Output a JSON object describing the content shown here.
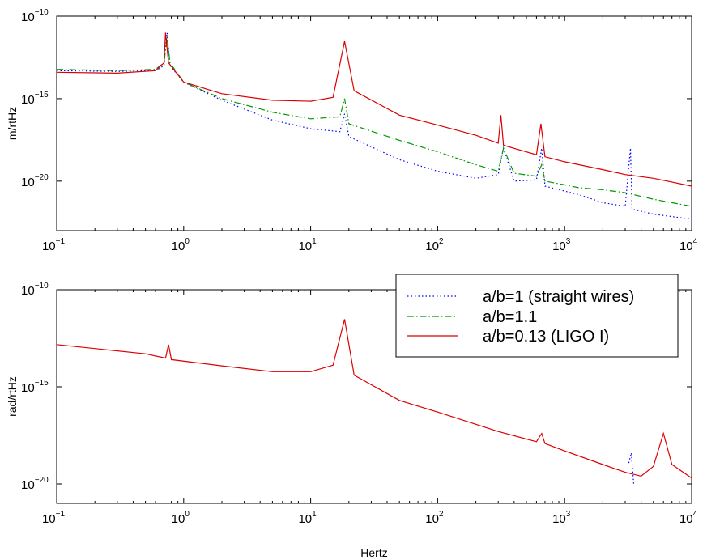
{
  "chart_data": [
    {
      "type": "line",
      "xscale": "log",
      "yscale": "log",
      "xlim": [
        0.1,
        10000
      ],
      "ylim": [
        1e-23,
        1e-10
      ],
      "xlabel": "",
      "ylabel": "m/rtHz",
      "x_ticks": [
        {
          "base": "10",
          "exp": "−1",
          "value": 0.1
        },
        {
          "base": "10",
          "exp": "0",
          "value": 1
        },
        {
          "base": "10",
          "exp": "1",
          "value": 10
        },
        {
          "base": "10",
          "exp": "2",
          "value": 100
        },
        {
          "base": "10",
          "exp": "3",
          "value": 1000
        },
        {
          "base": "10",
          "exp": "4",
          "value": 10000
        }
      ],
      "y_ticks": [
        {
          "base": "10",
          "exp": "−10",
          "value": 1e-10
        },
        {
          "base": "10",
          "exp": "−15",
          "value": 1e-15
        },
        {
          "base": "10",
          "exp": "−20",
          "value": 1e-20
        }
      ],
      "series": [
        {
          "name": "a/b=1 (straight wires)",
          "color": "#0000ff",
          "dash": "dotted",
          "x": [
            0.1,
            0.3,
            0.6,
            0.7,
            0.74,
            0.78,
            1,
            2,
            5,
            10,
            17,
            18.5,
            20,
            50,
            100,
            200,
            300,
            330,
            400,
            600,
            660,
            700,
            1000,
            1300,
            2000,
            3000,
            3300,
            3400,
            5000,
            10000
          ],
          "y": [
            5e-14,
            4.5e-14,
            5e-14,
            1e-13,
            1e-11,
            1e-13,
            1e-14,
            8e-16,
            5e-17,
            1.5e-17,
            1e-17,
            1.2e-16,
            5e-18,
            2e-19,
            4e-20,
            1.5e-20,
            2.5e-20,
            1e-18,
            1e-20,
            1.2e-20,
            1e-18,
            5e-21,
            2.5e-21,
            1.5e-21,
            5e-22,
            3e-22,
            1e-18,
            2e-22,
            1e-22,
            5e-23
          ]
        },
        {
          "name": "a/b=1.1",
          "color": "#009900",
          "dash": "dashdot",
          "x": [
            0.1,
            0.3,
            0.6,
            0.7,
            0.74,
            0.78,
            1,
            2,
            5,
            10,
            17,
            18.5,
            20,
            50,
            100,
            200,
            300,
            330,
            400,
            600,
            660,
            700,
            1000,
            1300,
            2000,
            3000,
            5000,
            10000
          ],
          "y": [
            6e-14,
            5e-14,
            6e-14,
            1.5e-13,
            5e-12,
            1.5e-13,
            1e-14,
            1e-15,
            1.5e-16,
            6e-17,
            8e-17,
            1e-15,
            3e-17,
            3e-18,
            6e-19,
            1e-19,
            4e-20,
            1e-18,
            3e-20,
            2e-20,
            1e-19,
            1e-20,
            6e-21,
            4e-21,
            3e-21,
            2e-21,
            8e-22,
            3e-22
          ]
        },
        {
          "name": "a/b=0.13 (LIGO I)",
          "color": "#dd0000",
          "dash": "solid",
          "x": [
            0.1,
            0.3,
            0.6,
            0.7,
            0.72,
            0.76,
            1,
            2,
            5,
            10,
            15,
            18.5,
            22,
            50,
            100,
            200,
            300,
            315,
            330,
            600,
            650,
            700,
            1000,
            2000,
            3000,
            5000,
            10000
          ],
          "y": [
            4e-14,
            3.5e-14,
            5e-14,
            1.5e-13,
            1e-11,
            1.5e-13,
            1e-14,
            2e-15,
            8e-16,
            7e-16,
            1.2e-15,
            3e-12,
            3e-15,
            1e-16,
            2.5e-17,
            6e-18,
            2e-18,
            1e-16,
            1.5e-18,
            4e-19,
            3e-17,
            3e-19,
            1.5e-19,
            5e-20,
            2.5e-20,
            1.5e-20,
            5e-21
          ]
        }
      ]
    },
    {
      "type": "line",
      "xscale": "log",
      "yscale": "log",
      "xlim": [
        0.1,
        10000
      ],
      "ylim": [
        1e-21,
        1e-10
      ],
      "xlabel": "Hertz",
      "ylabel": "rad/rtHz",
      "x_ticks": [
        {
          "base": "10",
          "exp": "−1",
          "value": 0.1
        },
        {
          "base": "10",
          "exp": "0",
          "value": 1
        },
        {
          "base": "10",
          "exp": "1",
          "value": 10
        },
        {
          "base": "10",
          "exp": "2",
          "value": 100
        },
        {
          "base": "10",
          "exp": "3",
          "value": 1000
        },
        {
          "base": "10",
          "exp": "4",
          "value": 10000
        }
      ],
      "y_ticks": [
        {
          "base": "10",
          "exp": "−10",
          "value": 1e-10
        },
        {
          "base": "10",
          "exp": "−15",
          "value": 1e-15
        },
        {
          "base": "10",
          "exp": "−20",
          "value": 1e-20
        }
      ],
      "series": [
        {
          "name": "a/b=1 (straight wires)",
          "color": "#0000ff",
          "dash": "dotted",
          "x": [
            3200,
            3350,
            3500
          ],
          "y": [
            1.2e-19,
            4e-19,
            1e-20
          ]
        },
        {
          "name": "a/b=0.13 (LIGO I)",
          "color": "#dd0000",
          "dash": "solid",
          "x": [
            0.1,
            0.5,
            0.72,
            0.76,
            0.8,
            2,
            5,
            10,
            15,
            18.5,
            22,
            50,
            100,
            300,
            600,
            660,
            700,
            1000,
            2000,
            3000,
            4000,
            5000,
            6000,
            7000,
            10000
          ],
          "y": [
            1.5e-13,
            5e-14,
            3e-14,
            1.5e-13,
            2.5e-14,
            1.2e-14,
            6e-15,
            6e-15,
            1.3e-14,
            3e-12,
            4e-15,
            2e-16,
            5e-17,
            5e-18,
            1.5e-18,
            4e-18,
            1.2e-18,
            5e-19,
            1e-19,
            4e-20,
            2.5e-20,
            8e-20,
            4e-18,
            1e-19,
            2e-20
          ]
        }
      ]
    }
  ],
  "legend": {
    "placement": "top-right of lower plot",
    "entries": [
      "a/b=1 (straight wires)",
      "a/b=1.1",
      "a/b=0.13 (LIGO I)"
    ]
  }
}
